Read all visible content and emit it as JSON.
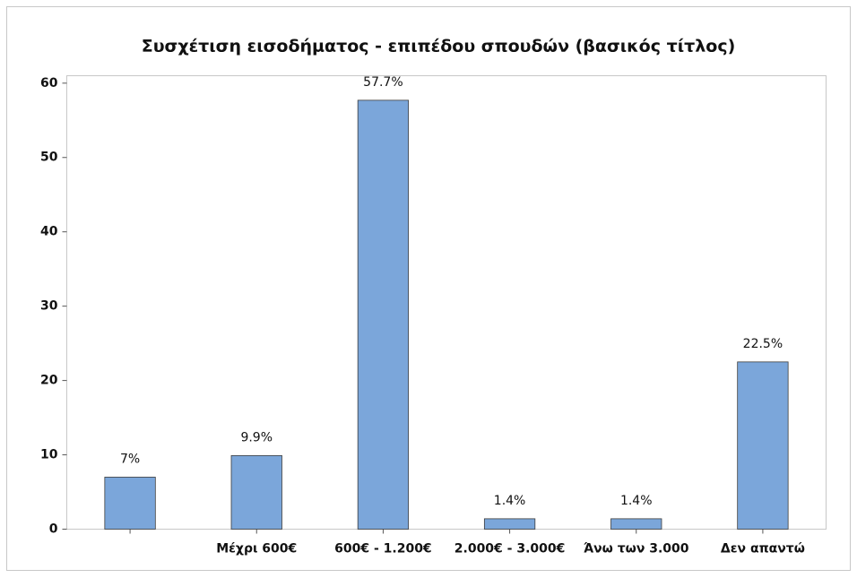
{
  "chart_data": {
    "type": "bar",
    "title": "Συσχέτιση εισοδήματος - επιπέδου σπουδών (βασικός τίτλος)",
    "categories": [
      null,
      "Μέχρι 600€",
      "600€ - 1.200€",
      "2.000€ - 3.000€",
      "Άνω των 3.000",
      "Δεν απαντώ"
    ],
    "values": [
      7,
      9.9,
      57.7,
      1.4,
      1.4,
      22.5
    ],
    "value_labels": [
      "7%",
      "9.9%",
      "57.7%",
      "1.4%",
      "1.4%",
      "22.5%"
    ],
    "color": "#7ba6da",
    "ylim": [
      0,
      61
    ],
    "yticks": [
      0,
      10,
      20,
      30,
      40,
      50,
      60
    ],
    "grid": false
  }
}
